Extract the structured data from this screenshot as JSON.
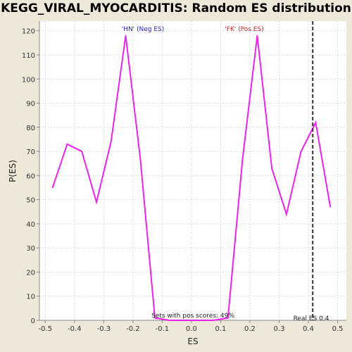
{
  "chart_data": {
    "type": "line",
    "title": "KEGG_VIRAL_MYOCARDITIS: Random ES distribution",
    "xlabel": "ES",
    "ylabel": "P(ES)",
    "xlim": [
      -0.52,
      0.53
    ],
    "ylim": [
      0,
      124
    ],
    "x_ticks": [
      "-0.5",
      "-0.4",
      "-0.3",
      "-0.2",
      "-0.1",
      "0.0",
      "0.1",
      "0.2",
      "0.3",
      "0.4",
      "0.5"
    ],
    "y_ticks": [
      "0",
      "10",
      "20",
      "30",
      "40",
      "50",
      "60",
      "70",
      "80",
      "90",
      "100",
      "110",
      "120"
    ],
    "grid": true,
    "series": [
      {
        "color": "#ee22ee",
        "x": [
          -0.475,
          -0.425,
          -0.375,
          -0.325,
          -0.275,
          -0.225,
          -0.175,
          -0.125,
          -0.075,
          -0.025,
          0.025,
          0.075,
          0.125,
          0.175,
          0.225,
          0.275,
          0.325,
          0.375,
          0.425,
          0.475
        ],
        "y": [
          55,
          73,
          70,
          49,
          74,
          118,
          67,
          1,
          0,
          0,
          0,
          0,
          1,
          67,
          118,
          63,
          44,
          70,
          82,
          47
        ]
      }
    ],
    "real_es": 0.415,
    "annotations": {
      "neg_label": "'HN' (Neg ES)",
      "neg_color": "#2222cc",
      "pos_label": "'FK' (Pos ES)",
      "pos_color": "#cc2222",
      "pos_scores": "Sets with pos scores: 49%",
      "real_es_label": "Real ES 0.4"
    }
  }
}
